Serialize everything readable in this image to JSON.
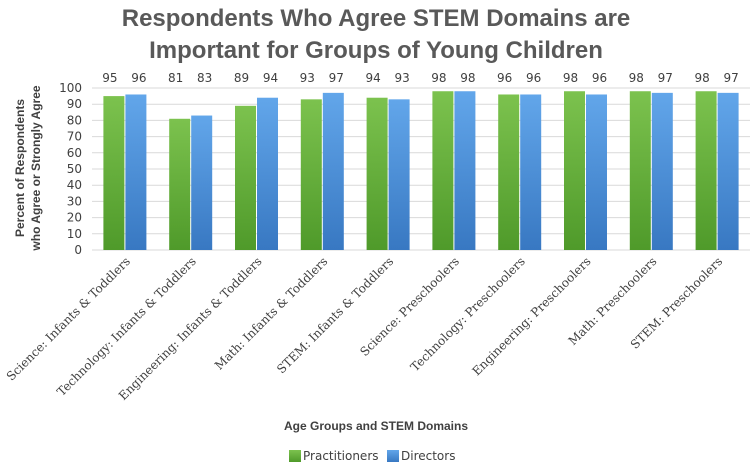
{
  "chart_data": {
    "type": "bar",
    "title_lines": [
      "Respondents Who Agree STEM Domains are",
      "Important for Groups of Young Children"
    ],
    "xlabel": "Age Groups and STEM Domains",
    "ylabel_lines": [
      "Percent of Respondents",
      "who Agree or Strongly Agree"
    ],
    "ylim": [
      0,
      100
    ],
    "yticks": [
      0,
      10,
      20,
      30,
      40,
      50,
      60,
      70,
      80,
      90,
      100
    ],
    "categories": [
      "Science: Infants & Toddlers",
      "Technology: Infants & Toddlers",
      "Engineering: Infants & Toddlers",
      "Math: Infants & Toddlers",
      "STEM: Infants & Toddlers",
      "Science: Preschoolers",
      "Technology: Preschoolers",
      "Engineering: Preschoolers",
      "Math: Preschoolers",
      "STEM: Preschoolers"
    ],
    "series": [
      {
        "name": "Practitioners",
        "color": "#6aaf3d",
        "values": [
          95,
          81,
          89,
          93,
          94,
          98,
          96,
          98,
          98,
          98
        ]
      },
      {
        "name": "Directors",
        "color": "#4a8fd6",
        "values": [
          96,
          83,
          94,
          97,
          93,
          98,
          96,
          96,
          97,
          97
        ]
      }
    ],
    "grid": true,
    "legend": "bottom-center"
  }
}
